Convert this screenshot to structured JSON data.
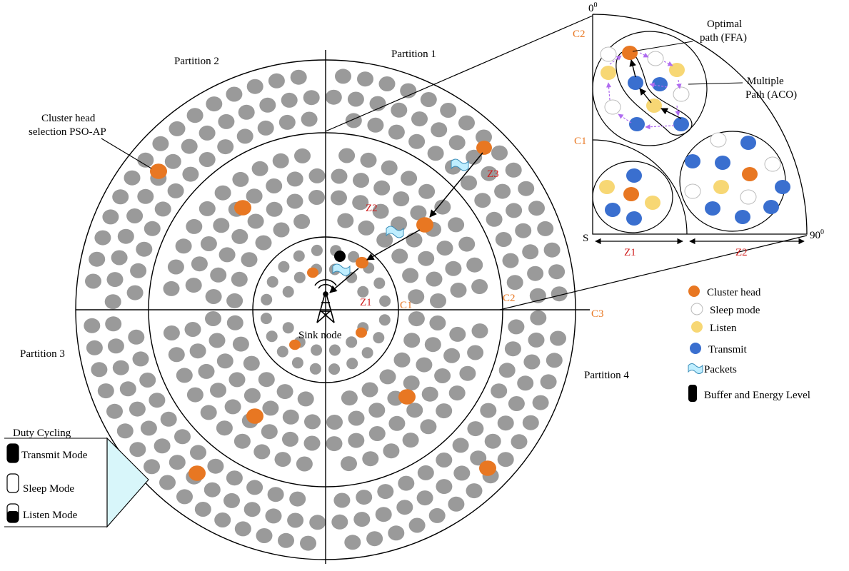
{
  "main": {
    "partitions": [
      "Partition 1",
      "Partition 2",
      "Partition 3",
      "Partition 4"
    ],
    "circle_labels": {
      "c1": "C1",
      "c2": "C2",
      "c3": "C3"
    },
    "zones": {
      "z1": "Z1",
      "z2": "Z2",
      "z3": "Z3"
    },
    "sink_label": "Sink node",
    "callout_lines": [
      "Cluster head",
      "selection PSO-AP"
    ]
  },
  "inset": {
    "angle_top": "0",
    "angle_right": "90",
    "degree_symbol": "0",
    "origin": "S",
    "c1": "C1",
    "c2": "C2",
    "z1": "Z1",
    "z2": "Z2",
    "optimal_lines": [
      "Optimal",
      "path (FFA)"
    ],
    "multiple_lines": [
      "Multiple",
      "Path (ACO)"
    ]
  },
  "legend": {
    "items": [
      "Cluster head",
      "Sleep mode",
      "Listen",
      "Transmit",
      "Packets",
      "Buffer and Energy Level"
    ]
  },
  "duty": {
    "title": "Duty Cycling",
    "modes": [
      "Transmit Mode",
      "Sleep Mode",
      "Listen Mode"
    ]
  },
  "colors": {
    "cluster_head": "#e87722",
    "sleep": "#ffffff",
    "listen": "#f7d774",
    "transmit": "#3a6fcf",
    "node": "#9a9a9a",
    "packet": "#bfeeff",
    "duty_fill": "#d8f6fa",
    "arrow_purple": "#b06cf0"
  }
}
